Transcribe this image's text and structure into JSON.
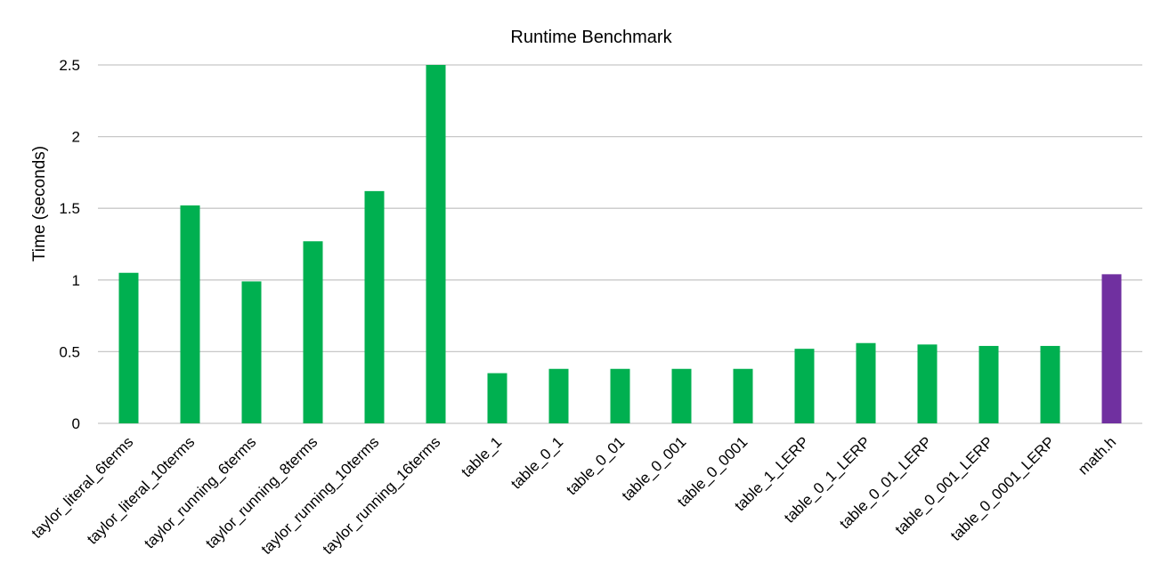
{
  "chart_data": {
    "type": "bar",
    "title": "Runtime Benchmark",
    "xlabel": "",
    "ylabel": "Time (seconds)",
    "ylim": [
      0,
      2.5
    ],
    "yticks": [
      "0",
      "0.5",
      "1",
      "1.5",
      "2",
      "2.5"
    ],
    "grid": true,
    "legend": "none",
    "categories": [
      "taylor_literal_6terms",
      "taylor_literal_10terms",
      "taylor_running_6terms",
      "taylor_running_8terms",
      "taylor_running_10terms",
      "taylor_running_16terms",
      "table_1",
      "table_0_1",
      "table_0_01",
      "table_0_001",
      "table_0_0001",
      "table_1_LERP",
      "table_0_1_LERP",
      "table_0_01_LERP",
      "table_0_001_LERP",
      "table_0_0001_LERP",
      "math.h"
    ],
    "values": [
      1.05,
      1.52,
      0.99,
      1.27,
      1.62,
      2.5,
      0.35,
      0.38,
      0.38,
      0.38,
      0.38,
      0.52,
      0.56,
      0.55,
      0.54,
      0.54,
      1.04
    ],
    "colors": {
      "default": "#00B050",
      "highlight": "#7030A0"
    },
    "highlight_categories": [
      "math.h"
    ]
  }
}
